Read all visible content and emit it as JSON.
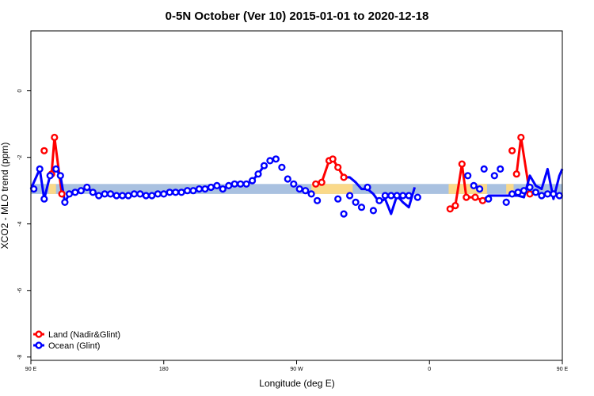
{
  "chart_data": {
    "type": "line",
    "title": "0-5N October (Ver 10)   2015-01-01 to 2020-12-18",
    "xlabel": "Longitude (deg E)",
    "ylabel": "XCO2 - MLO trend (ppm)",
    "xlim": [
      90,
      450
    ],
    "ylim": [
      -8.1,
      1.8
    ],
    "x_ticks": [
      {
        "value": 90,
        "label": "90 E"
      },
      {
        "value": 180,
        "label": "180"
      },
      {
        "value": 270,
        "label": "90 W"
      },
      {
        "value": 360,
        "label": "0"
      },
      {
        "value": 450,
        "label": "90 E"
      }
    ],
    "y_ticks": [
      {
        "value": -8,
        "label": "-8"
      },
      {
        "value": -6,
        "label": "-6"
      },
      {
        "value": -4,
        "label": "-4"
      },
      {
        "value": -2,
        "label": "-2"
      },
      {
        "value": 0,
        "label": "0"
      }
    ],
    "bands": {
      "ocean_color": "#a9c1e0",
      "land_color": "#fad98a",
      "y_range": [
        -3.1,
        -2.8
      ],
      "land_ranges": [
        [
          102,
          107
        ],
        [
          280,
          308
        ],
        [
          373,
          399
        ],
        [
          412,
          417
        ]
      ]
    },
    "legend": {
      "position": "bottom-left",
      "entries": [
        {
          "name": "Land (Nadir&Glint)",
          "color": "#ff0000"
        },
        {
          "name": "Ocean (Glint)",
          "color": "#0000ff"
        }
      ]
    },
    "series": [
      {
        "name": "Land (Nadir&Glint)",
        "color": "#ff0000",
        "x": [
          99,
          104,
          106,
          111,
          283,
          287,
          292,
          294.5,
          298,
          302,
          374,
          377.5,
          382,
          385,
          391,
          396,
          416,
          419,
          422,
          428
        ],
        "y": [
          -1.8,
          -2.5,
          -1.4,
          -3.1,
          -2.8,
          -2.75,
          -2.1,
          -2.05,
          -2.3,
          -2.6,
          -3.55,
          -3.45,
          -2.2,
          -3.2,
          -3.2,
          -3.3,
          -1.8,
          -2.5,
          -1.4,
          -3.1
        ],
        "segments": [
          [
            [
              104,
              -2.5
            ],
            [
              106,
              -1.4
            ],
            [
              111,
              -3.1
            ]
          ],
          [
            [
              283,
              -2.8
            ],
            [
              287,
              -2.75
            ],
            [
              292,
              -2.1
            ],
            [
              294.5,
              -2.05
            ],
            [
              298,
              -2.3
            ],
            [
              302,
              -2.6
            ]
          ],
          [
            [
              374,
              -3.55
            ],
            [
              377.5,
              -3.45
            ],
            [
              382,
              -2.2
            ],
            [
              385,
              -3.2
            ],
            [
              391,
              -3.2
            ],
            [
              396,
              -3.3
            ]
          ],
          [
            [
              419,
              -2.5
            ],
            [
              422,
              -1.4
            ],
            [
              428,
              -3.1
            ]
          ]
        ]
      },
      {
        "name": "Ocean (Glint)",
        "color": "#0000ff",
        "x": [
          92,
          96,
          99,
          103,
          107,
          110,
          113,
          116,
          120,
          124,
          128,
          132,
          136,
          140,
          144,
          148,
          152,
          156,
          160,
          164,
          168,
          172,
          176,
          180,
          184,
          188,
          192,
          196,
          200,
          204,
          208,
          212,
          216,
          220,
          224,
          228,
          232,
          236,
          240,
          244,
          248,
          252,
          256,
          260,
          264,
          268,
          272,
          276,
          280,
          284,
          298,
          302,
          306,
          310,
          314,
          318,
          322,
          326,
          330,
          334,
          338,
          342,
          346,
          352,
          386,
          390,
          394,
          397,
          400,
          404,
          408,
          412,
          416,
          420,
          424,
          428,
          432,
          436,
          440,
          444,
          448
        ],
        "y": [
          -2.95,
          -2.35,
          -3.25,
          -2.55,
          -2.35,
          -2.55,
          -3.35,
          -3.1,
          -3.05,
          -3.0,
          -2.9,
          -3.05,
          -3.15,
          -3.1,
          -3.1,
          -3.15,
          -3.15,
          -3.15,
          -3.1,
          -3.1,
          -3.15,
          -3.15,
          -3.1,
          -3.1,
          -3.05,
          -3.05,
          -3.05,
          -3.0,
          -3.0,
          -2.95,
          -2.95,
          -2.9,
          -2.85,
          -2.95,
          -2.85,
          -2.8,
          -2.8,
          -2.8,
          -2.7,
          -2.5,
          -2.25,
          -2.1,
          -2.05,
          -2.3,
          -2.65,
          -2.8,
          -2.95,
          -3.0,
          -3.1,
          -3.3,
          -3.25,
          -3.7,
          -3.15,
          -3.35,
          -3.5,
          -2.9,
          -3.6,
          -3.3,
          -3.15,
          -3.15,
          -3.15,
          -3.15,
          -3.15,
          -3.2,
          -2.55,
          -2.85,
          -2.95,
          -2.35,
          -3.25,
          -2.55,
          -2.35,
          -3.35,
          -3.1,
          -3.05,
          -3.0,
          -2.9,
          -3.05,
          -3.15,
          -3.1,
          -3.1,
          -3.15
        ],
        "segments": [
          [
            [
              90,
              -2.95
            ],
            [
              96,
              -2.35
            ],
            [
              99,
              -3.25
            ],
            [
              103,
              -2.55
            ],
            [
              107,
              -2.35
            ],
            [
              110,
              -2.55
            ],
            [
              113,
              -3.35
            ],
            [
              116,
              -3.1
            ],
            [
              120,
              -3.05
            ],
            [
              124,
              -3.0
            ],
            [
              128,
              -2.9
            ],
            [
              132,
              -3.05
            ],
            [
              136,
              -3.15
            ],
            [
              140,
              -3.1
            ],
            [
              144,
              -3.1
            ],
            [
              148,
              -3.15
            ],
            [
              152,
              -3.15
            ],
            [
              156,
              -3.15
            ],
            [
              160,
              -3.1
            ],
            [
              164,
              -3.1
            ],
            [
              168,
              -3.15
            ],
            [
              172,
              -3.15
            ],
            [
              176,
              -3.1
            ],
            [
              180,
              -3.1
            ],
            [
              184,
              -3.05
            ],
            [
              188,
              -3.05
            ],
            [
              192,
              -3.05
            ],
            [
              196,
              -3.0
            ],
            [
              200,
              -3.0
            ],
            [
              204,
              -2.95
            ],
            [
              208,
              -2.95
            ],
            [
              212,
              -2.9
            ],
            [
              216,
              -2.85
            ],
            [
              220,
              -2.95
            ],
            [
              224,
              -2.85
            ],
            [
              228,
              -2.8
            ],
            [
              232,
              -2.8
            ],
            [
              236,
              -2.8
            ],
            [
              240,
              -2.7
            ],
            [
              244,
              -2.5
            ],
            [
              248,
              -2.25
            ]
          ],
          [
            [
              302,
              -2.6
            ],
            [
              306,
              -2.6
            ],
            [
              310,
              -2.75
            ],
            [
              314,
              -2.95
            ],
            [
              318,
              -2.95
            ],
            [
              322,
              -3.1
            ],
            [
              326,
              -3.35
            ],
            [
              330,
              -3.25
            ],
            [
              334,
              -3.7
            ],
            [
              338,
              -3.15
            ],
            [
              342,
              -3.35
            ],
            [
              346,
              -3.5
            ],
            [
              350,
              -2.9
            ]
          ],
          [
            [
              396,
              -3.3
            ],
            [
              400,
              -3.15
            ],
            [
              404,
              -3.15
            ],
            [
              408,
              -3.15
            ],
            [
              412,
              -3.15
            ],
            [
              416,
              -3.15
            ],
            [
              420,
              -3.15
            ],
            [
              424,
              -3.2
            ],
            [
              428,
              -2.55
            ],
            [
              432,
              -2.85
            ],
            [
              436,
              -2.95
            ],
            [
              440,
              -2.35
            ],
            [
              444,
              -3.25
            ],
            [
              448,
              -2.55
            ],
            [
              450,
              -2.35
            ]
          ]
        ]
      }
    ],
    "grid": false
  }
}
